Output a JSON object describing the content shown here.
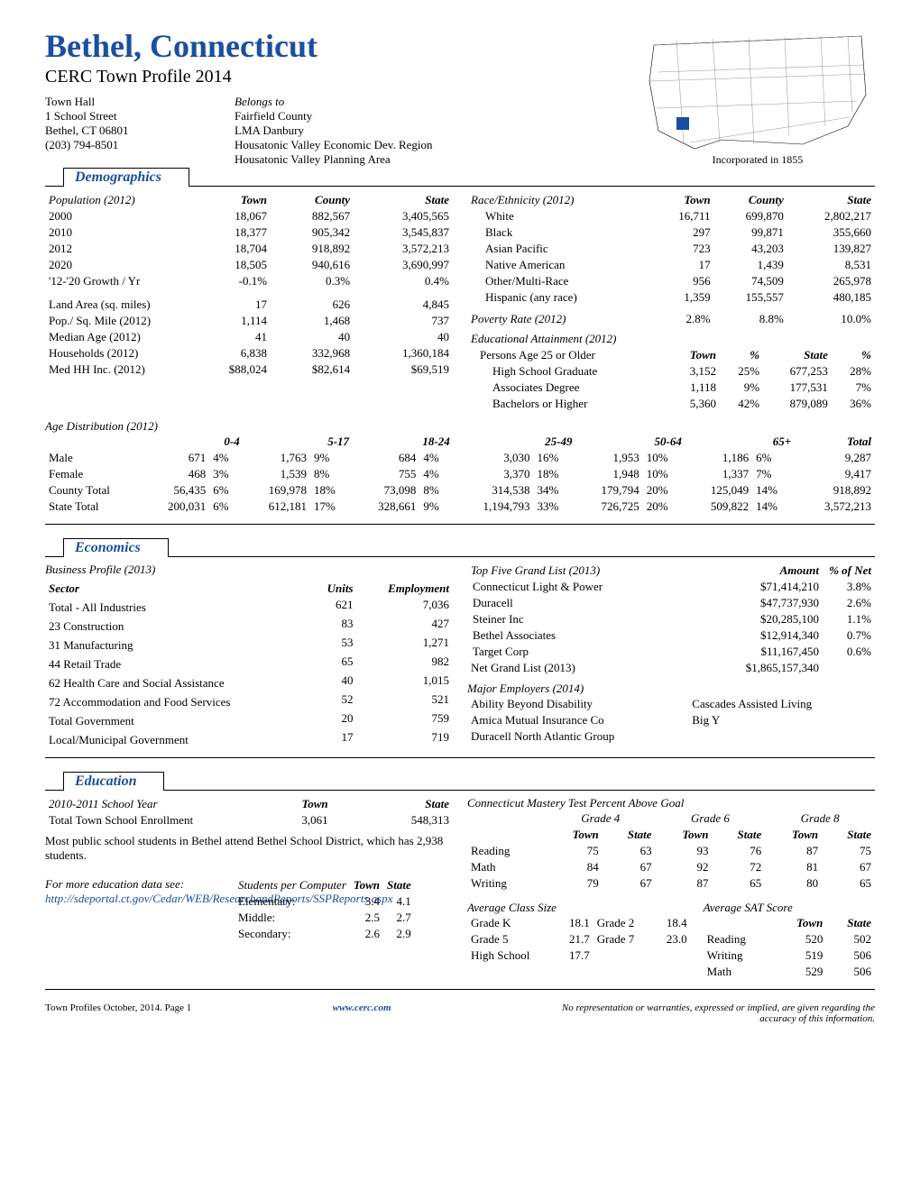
{
  "header": {
    "title": "Bethel, Connecticut",
    "subtitle": "CERC Town Profile 2014",
    "address": [
      "Town Hall",
      "1 School Street",
      "Bethel, CT  06801",
      "(203) 794-8501"
    ],
    "belongs_label": "Belongs to",
    "belongs": [
      "Fairfield County",
      "LMA Danbury",
      "Housatonic Valley Economic Dev. Region",
      "Housatonic Valley Planning Area"
    ],
    "incorporated": "Incorporated in 1855",
    "colors": {
      "accent": "#1a4fa0"
    }
  },
  "demographics": {
    "title": "Demographics",
    "pop_label": "Population (2012)",
    "cols": [
      "Town",
      "County",
      "State"
    ],
    "population": [
      {
        "label": "2000",
        "town": "18,067",
        "county": "882,567",
        "state": "3,405,565"
      },
      {
        "label": "2010",
        "town": "18,377",
        "county": "905,342",
        "state": "3,545,837"
      },
      {
        "label": "2012",
        "town": "18,704",
        "county": "918,892",
        "state": "3,572,213"
      },
      {
        "label": "2020",
        "town": "18,505",
        "county": "940,616",
        "state": "3,690,997"
      },
      {
        "label": "'12-'20 Growth / Yr",
        "town": "-0.1%",
        "county": "0.3%",
        "state": "0.4%"
      }
    ],
    "misc": [
      {
        "label": "Land Area (sq. miles)",
        "town": "17",
        "county": "626",
        "state": "4,845"
      },
      {
        "label": "Pop./ Sq. Mile (2012)",
        "town": "1,114",
        "county": "1,468",
        "state": "737"
      },
      {
        "label": "Median Age (2012)",
        "town": "41",
        "county": "40",
        "state": "40"
      },
      {
        "label": "Households (2012)",
        "town": "6,838",
        "county": "332,968",
        "state": "1,360,184"
      },
      {
        "label": "Med HH Inc. (2012)",
        "town": "$88,024",
        "county": "$82,614",
        "state": "$69,519"
      }
    ],
    "race_label": "Race/Ethnicity  (2012)",
    "race": [
      {
        "label": "White",
        "town": "16,711",
        "county": "699,870",
        "state": "2,802,217"
      },
      {
        "label": "Black",
        "town": "297",
        "county": "99,871",
        "state": "355,660"
      },
      {
        "label": "Asian Pacific",
        "town": "723",
        "county": "43,203",
        "state": "139,827"
      },
      {
        "label": "Native American",
        "town": "17",
        "county": "1,439",
        "state": "8,531"
      },
      {
        "label": "Other/Multi-Race",
        "town": "956",
        "county": "74,509",
        "state": "265,978"
      },
      {
        "label": "Hispanic (any race)",
        "town": "1,359",
        "county": "155,557",
        "state": "480,185"
      }
    ],
    "poverty": {
      "label": "Poverty Rate (2012)",
      "town": "2.8%",
      "county": "8.8%",
      "state": "10.0%"
    },
    "edu_label": "Educational Attainment (2012)",
    "edu_sub": "Persons Age 25 or Older",
    "edu_cols": [
      "Town",
      "%",
      "State",
      "%"
    ],
    "edu": [
      {
        "label": "High School Graduate",
        "town": "3,152",
        "tp": "25%",
        "state": "677,253",
        "sp": "28%"
      },
      {
        "label": "Associates Degree",
        "town": "1,118",
        "tp": "9%",
        "state": "177,531",
        "sp": "7%"
      },
      {
        "label": "Bachelors or Higher",
        "town": "5,360",
        "tp": "42%",
        "state": "879,089",
        "sp": "36%"
      }
    ],
    "age_label": "Age Distribution (2012)",
    "age_cols": [
      "0-4",
      "5-17",
      "18-24",
      "25-49",
      "50-64",
      "65+",
      "Total"
    ],
    "age_rows": [
      {
        "label": "Male",
        "v": [
          "671",
          "4%",
          "1,763",
          "9%",
          "684",
          "4%",
          "3,030",
          "16%",
          "1,953",
          "10%",
          "1,186",
          "6%",
          "9,287"
        ]
      },
      {
        "label": "Female",
        "v": [
          "468",
          "3%",
          "1,539",
          "8%",
          "755",
          "4%",
          "3,370",
          "18%",
          "1,948",
          "10%",
          "1,337",
          "7%",
          "9,417"
        ]
      },
      {
        "label": "County Total",
        "v": [
          "56,435",
          "6%",
          "169,978",
          "18%",
          "73,098",
          "8%",
          "314,538",
          "34%",
          "179,794",
          "20%",
          "125,049",
          "14%",
          "918,892"
        ]
      },
      {
        "label": "State Total",
        "v": [
          "200,031",
          "6%",
          "612,181",
          "17%",
          "328,661",
          "9%",
          "1,194,793",
          "33%",
          "726,725",
          "20%",
          "509,822",
          "14%",
          "3,572,213"
        ]
      }
    ]
  },
  "economics": {
    "title": "Economics",
    "biz_label": "Business Profile (2013)",
    "biz_cols": [
      "Sector",
      "Units",
      "Employment"
    ],
    "biz": [
      {
        "label": "Total - All Industries",
        "units": "621",
        "emp": "7,036"
      },
      {
        "label": "23  Construction",
        "units": "83",
        "emp": "427"
      },
      {
        "label": "31  Manufacturing",
        "units": "53",
        "emp": "1,271"
      },
      {
        "label": "44  Retail Trade",
        "units": "65",
        "emp": "982"
      },
      {
        "label": "62  Health Care and Social Assistance",
        "units": "40",
        "emp": "1,015"
      },
      {
        "label": "72  Accommodation and Food Services",
        "units": "52",
        "emp": "521"
      },
      {
        "label": "Total Government",
        "units": "20",
        "emp": "759"
      },
      {
        "label": "Local/Municipal Government",
        "units": "17",
        "emp": "719"
      }
    ],
    "grand_label": "Top Five Grand List (2013)",
    "grand_cols": [
      "Amount",
      "% of Net"
    ],
    "grand": [
      {
        "label": "Connecticut Light & Power",
        "amt": "$71,414,210",
        "pct": "3.8%"
      },
      {
        "label": "Duracell",
        "amt": "$47,737,930",
        "pct": "2.6%"
      },
      {
        "label": "Steiner Inc",
        "amt": "$20,285,100",
        "pct": "1.1%"
      },
      {
        "label": "Bethel Associates",
        "amt": "$12,914,340",
        "pct": "0.7%"
      },
      {
        "label": "Target Corp",
        "amt": "$11,167,450",
        "pct": "0.6%"
      }
    ],
    "net_grand": {
      "label": "Net Grand List (2013)",
      "amt": "$1,865,157,340"
    },
    "employers_label": "Major Employers (2014)",
    "employers": [
      [
        "Ability Beyond Disability",
        "Cascades Assisted Living"
      ],
      [
        "Amica Mutual Insurance Co",
        "Big Y"
      ],
      [
        "Duracell North Atlantic Group",
        ""
      ]
    ]
  },
  "education": {
    "title": "Education",
    "year_label": "2010-2011 School Year",
    "cols": [
      "Town",
      "State"
    ],
    "enroll": {
      "label": "Total Town School Enrollment",
      "town": "3,061",
      "state": "548,313"
    },
    "note": "Most public school students in Bethel attend Bethel School District, which has 2,938 students.",
    "link_label": "For more education data see:",
    "link": "http://sdeportal.ct.gov/Cedar/WEB/ResearchandReports/SSPReports.aspx",
    "spc_label": "Students per Computer",
    "spc": [
      {
        "label": "Elementary:",
        "town": "3.4",
        "state": "4.1"
      },
      {
        "label": "Middle:",
        "town": "2.5",
        "state": "2.7"
      },
      {
        "label": "Secondary:",
        "town": "2.6",
        "state": "2.9"
      }
    ],
    "cmt_label": "Connecticut Mastery Test Percent Above Goal",
    "cmt_grades": [
      "Grade 4",
      "Grade 6",
      "Grade 8"
    ],
    "cmt_sub": [
      "Town",
      "State"
    ],
    "cmt": [
      {
        "label": "Reading",
        "v": [
          "75",
          "63",
          "93",
          "76",
          "87",
          "75"
        ]
      },
      {
        "label": "Math",
        "v": [
          "84",
          "67",
          "92",
          "72",
          "81",
          "67"
        ]
      },
      {
        "label": "Writing",
        "v": [
          "79",
          "67",
          "87",
          "65",
          "80",
          "65"
        ]
      }
    ],
    "class_label": "Average Class Size",
    "class": [
      [
        "Grade K",
        "18.1",
        "Grade 2",
        "18.4"
      ],
      [
        "Grade 5",
        "21.7",
        "Grade 7",
        "23.0"
      ],
      [
        "High School",
        "17.7",
        "",
        ""
      ]
    ],
    "sat_label": "Average SAT Score",
    "sat": [
      {
        "label": "Reading",
        "town": "520",
        "state": "502"
      },
      {
        "label": "Writing",
        "town": "519",
        "state": "506"
      },
      {
        "label": "Math",
        "town": "529",
        "state": "506"
      }
    ]
  },
  "footer": {
    "left": "Town Profiles  October, 2014.  Page 1",
    "center": "www.cerc.com",
    "right": "No representation or warranties, expressed or implied, are given regarding the accuracy of this information."
  }
}
